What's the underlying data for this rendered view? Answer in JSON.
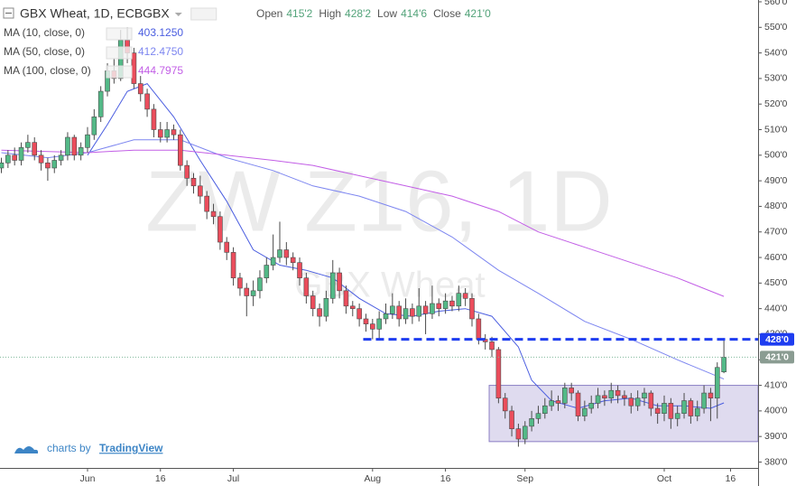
{
  "chart_data": {
    "type": "candlestick",
    "header": {
      "symbol": "GBX Wheat, 1D, ECBGBX",
      "fields": [
        {
          "name": "Open",
          "value": "415'2"
        },
        {
          "name": "High",
          "value": "428'2"
        },
        {
          "name": "Low",
          "value": "414'6"
        },
        {
          "name": "Close",
          "value": "421'0"
        }
      ]
    },
    "watermark": [
      "ZW Z16, 1D",
      "GBX Wheat"
    ],
    "branding": {
      "prefix": "charts by",
      "name": "TradingView"
    },
    "up_color": "#53b987",
    "down_color": "#eb4d5c",
    "categories": [
      null,
      null,
      null,
      null,
      null,
      null,
      null,
      null,
      null,
      null,
      null,
      null,
      null,
      "Jun",
      null,
      null,
      null,
      null,
      null,
      null,
      null,
      null,
      null,
      null,
      "16",
      null,
      null,
      null,
      null,
      null,
      null,
      null,
      null,
      null,
      null,
      "Jul",
      null,
      null,
      null,
      null,
      null,
      null,
      null,
      null,
      null,
      null,
      null,
      null,
      null,
      null,
      null,
      null,
      null,
      null,
      null,
      null,
      "Aug",
      null,
      null,
      null,
      null,
      null,
      null,
      null,
      null,
      null,
      null,
      "16",
      null,
      null,
      null,
      null,
      null,
      null,
      null,
      null,
      null,
      null,
      null,
      "Sep",
      null,
      null,
      null,
      null,
      null,
      null,
      null,
      null,
      null,
      null,
      null,
      null,
      null,
      null,
      null,
      null,
      null,
      null,
      null,
      null,
      "Oct",
      null,
      null,
      null,
      null,
      null,
      null,
      null,
      null,
      null,
      "16"
    ],
    "ohlc": [
      [
        495,
        499,
        493,
        497
      ],
      [
        497,
        502,
        495,
        500
      ],
      [
        500,
        503,
        496,
        498
      ],
      [
        498,
        505,
        496,
        503
      ],
      [
        503,
        508,
        501,
        505
      ],
      [
        505,
        507,
        498,
        500
      ],
      [
        500,
        502,
        494,
        497
      ],
      [
        497,
        499,
        490,
        495
      ],
      [
        495,
        500,
        493,
        498
      ],
      [
        498,
        502,
        496,
        500
      ],
      [
        500,
        509,
        498,
        507
      ],
      [
        507,
        508,
        498,
        500
      ],
      [
        500,
        505,
        498,
        503
      ],
      [
        503,
        511,
        501,
        508
      ],
      [
        508,
        518,
        506,
        515
      ],
      [
        515,
        527,
        513,
        525
      ],
      [
        525,
        536,
        523,
        533
      ],
      [
        533,
        538,
        528,
        530
      ],
      [
        530,
        549,
        529,
        545
      ],
      [
        545,
        550,
        536,
        540
      ],
      [
        540,
        542,
        526,
        528
      ],
      [
        528,
        531,
        521,
        524
      ],
      [
        524,
        526,
        515,
        518
      ],
      [
        518,
        520,
        507,
        510
      ],
      [
        510,
        513,
        505,
        507
      ],
      [
        507,
        513,
        505,
        510
      ],
      [
        510,
        512,
        506,
        508
      ],
      [
        508,
        510,
        494,
        496
      ],
      [
        496,
        498,
        488,
        491
      ],
      [
        491,
        493,
        485,
        488
      ],
      [
        488,
        492,
        481,
        484
      ],
      [
        484,
        486,
        475,
        478
      ],
      [
        478,
        481,
        473,
        476
      ],
      [
        476,
        478,
        463,
        466
      ],
      [
        466,
        468,
        459,
        462
      ],
      [
        462,
        464,
        449,
        452
      ],
      [
        452,
        454,
        445,
        448
      ],
      [
        448,
        450,
        437,
        445
      ],
      [
        445,
        451,
        441,
        447
      ],
      [
        447,
        455,
        444,
        452
      ],
      [
        452,
        460,
        450,
        457
      ],
      [
        457,
        469,
        455,
        460
      ],
      [
        460,
        474,
        458,
        463
      ],
      [
        463,
        466,
        457,
        460
      ],
      [
        460,
        462,
        455,
        458
      ],
      [
        458,
        460,
        449,
        452
      ],
      [
        452,
        454,
        442,
        445
      ],
      [
        445,
        447,
        437,
        440
      ],
      [
        440,
        442,
        433,
        437
      ],
      [
        437,
        447,
        435,
        444
      ],
      [
        444,
        459,
        442,
        454
      ],
      [
        454,
        456,
        444,
        447
      ],
      [
        447,
        449,
        438,
        441
      ],
      [
        441,
        443,
        437,
        440
      ],
      [
        440,
        442,
        433,
        436
      ],
      [
        436,
        438,
        431,
        434
      ],
      [
        434,
        436,
        428,
        432
      ],
      [
        432,
        439,
        428,
        436
      ],
      [
        436,
        442,
        434,
        438
      ],
      [
        438,
        446,
        436,
        441
      ],
      [
        441,
        443,
        433,
        436
      ],
      [
        436,
        444,
        434,
        440
      ],
      [
        440,
        442,
        434,
        437
      ],
      [
        437,
        448,
        435,
        441
      ],
      [
        441,
        443,
        430,
        438
      ],
      [
        438,
        449,
        436,
        442
      ],
      [
        442,
        444,
        437,
        440
      ],
      [
        440,
        446,
        438,
        443
      ],
      [
        443,
        445,
        439,
        441
      ],
      [
        441,
        449,
        439,
        446
      ],
      [
        446,
        448,
        441,
        444
      ],
      [
        444,
        446,
        433,
        436
      ],
      [
        436,
        438,
        426,
        428
      ],
      [
        428,
        430,
        424,
        427
      ],
      [
        427,
        429,
        421,
        424
      ],
      [
        424,
        425,
        403,
        405
      ],
      [
        405,
        407,
        397,
        400
      ],
      [
        400,
        402,
        390,
        393
      ],
      [
        393,
        395,
        386,
        389
      ],
      [
        389,
        396,
        387,
        394
      ],
      [
        394,
        400,
        392,
        397
      ],
      [
        397,
        402,
        395,
        399
      ],
      [
        399,
        405,
        397,
        402
      ],
      [
        402,
        408,
        400,
        404
      ],
      [
        404,
        406,
        400,
        403
      ],
      [
        403,
        411,
        401,
        409
      ],
      [
        409,
        411,
        404,
        407
      ],
      [
        407,
        408,
        396,
        398
      ],
      [
        398,
        404,
        396,
        401
      ],
      [
        401,
        406,
        399,
        403
      ],
      [
        403,
        409,
        401,
        406
      ],
      [
        406,
        408,
        402,
        405
      ],
      [
        405,
        411,
        403,
        408
      ],
      [
        408,
        410,
        403,
        406
      ],
      [
        406,
        408,
        402,
        405
      ],
      [
        405,
        407,
        399,
        402
      ],
      [
        402,
        408,
        400,
        405
      ],
      [
        405,
        409,
        402,
        407
      ],
      [
        407,
        408,
        398,
        401
      ],
      [
        401,
        403,
        395,
        399
      ],
      [
        399,
        406,
        396,
        403
      ],
      [
        403,
        405,
        393,
        397
      ],
      [
        397,
        402,
        394,
        399
      ],
      [
        399,
        407,
        397,
        404
      ],
      [
        404,
        405,
        395,
        398
      ],
      [
        398,
        404,
        396,
        401
      ],
      [
        401,
        410,
        399,
        407
      ],
      [
        407,
        409,
        396,
        405
      ],
      [
        405,
        419,
        397,
        417
      ],
      [
        415.25,
        428.25,
        414.75,
        421
      ],
      null
    ],
    "series": [
      {
        "name": "MA (10, close, 0)",
        "value_label": "403.1250",
        "color": "#4a5de0",
        "x": [
          13,
          16,
          19,
          22,
          26,
          30,
          34,
          38,
          42,
          46,
          50,
          54,
          58,
          62,
          66,
          70,
          74,
          78,
          80,
          83,
          87,
          91,
          95,
          99,
          103,
          107,
          109
        ],
        "values": [
          500,
          512,
          525,
          528,
          515,
          498,
          482,
          463,
          457,
          455,
          452,
          444,
          438,
          437,
          439,
          440,
          437,
          425,
          412,
          404,
          401,
          404,
          405,
          402,
          402,
          401,
          403.125
        ]
      },
      {
        "name": "MA (50, close, 0)",
        "value_label": "412.4750",
        "color": "#7d86f0",
        "x": [
          0,
          7,
          13,
          20,
          27,
          34,
          41,
          47,
          54,
          61,
          68,
          75,
          81,
          88,
          95,
          102,
          109
        ],
        "values": [
          501,
          499,
          501,
          506,
          506,
          499,
          494,
          488,
          484,
          478,
          468,
          455,
          446,
          435,
          428,
          420,
          412.475
        ]
      },
      {
        "name": "MA (100, close, 0)",
        "value_label": "444.7975",
        "color": "#c25ee6",
        "x": [
          0,
          13,
          20,
          27,
          34,
          41,
          47,
          54,
          61,
          68,
          75,
          81,
          88,
          95,
          102,
          109
        ],
        "values": [
          502,
          501,
          502,
          502,
          500,
          498,
          496,
          492,
          488,
          484,
          478,
          470,
          464,
          458,
          452,
          444.7975
        ]
      }
    ],
    "hline": {
      "value": 428,
      "label": "428'0",
      "start": 55,
      "color": "#1e3df0"
    },
    "price_line": {
      "value": 421,
      "label": "421'0",
      "color": "#7fb79a"
    },
    "range_box": {
      "start": 74,
      "y": [
        388,
        410
      ],
      "color": "#b8b0dc"
    },
    "ylim": [
      377.7,
      560.7
    ],
    "yticks": [
      {
        "value": 380,
        "label": "380'0"
      },
      {
        "value": 390,
        "label": "390'0"
      },
      {
        "value": 400,
        "label": "400'0"
      },
      {
        "value": 410,
        "label": "410'0"
      },
      {
        "value": 420,
        "label": "420'0"
      },
      {
        "value": 430,
        "label": "430'0"
      },
      {
        "value": 440,
        "label": "440'0"
      },
      {
        "value": 450,
        "label": "450'0"
      },
      {
        "value": 460,
        "label": "460'0"
      },
      {
        "value": 470,
        "label": "470'0"
      },
      {
        "value": 480,
        "label": "480'0"
      },
      {
        "value": 490,
        "label": "490'0"
      },
      {
        "value": 500,
        "label": "500'0"
      },
      {
        "value": 510,
        "label": "510'0"
      },
      {
        "value": 520,
        "label": "520'0"
      },
      {
        "value": 530,
        "label": "530'0"
      },
      {
        "value": 540,
        "label": "540'0"
      },
      {
        "value": 550,
        "label": "550'0"
      },
      {
        "value": 560,
        "label": "560'0"
      }
    ],
    "grid": false
  }
}
